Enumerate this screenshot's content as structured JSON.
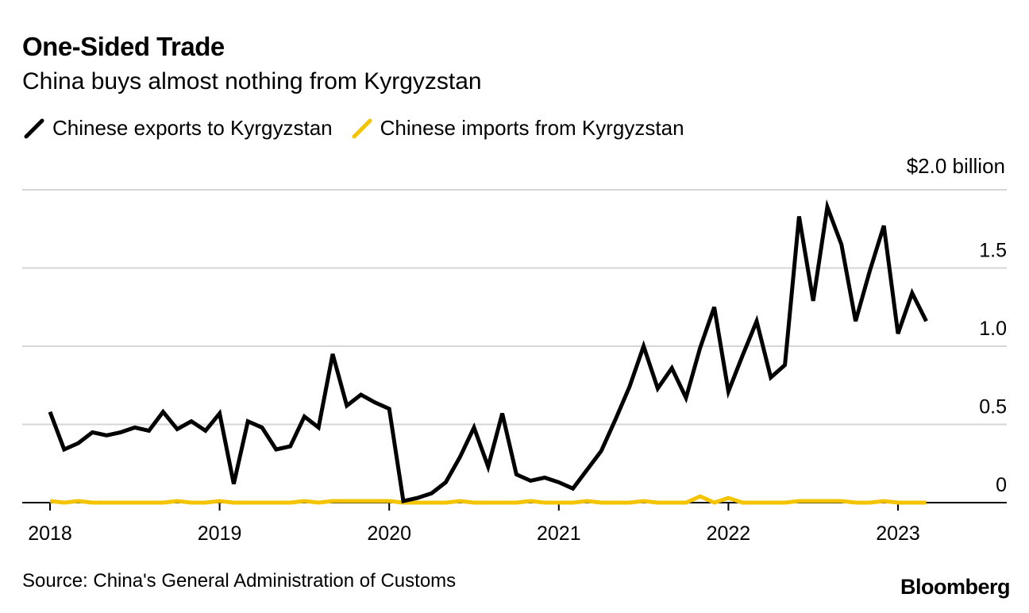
{
  "header": {
    "title": "One-Sided Trade",
    "subtitle": "China buys almost nothing from Kyrgyzstan"
  },
  "legend": [
    {
      "label": "Chinese exports to Kyrgyzstan",
      "color": "#000000"
    },
    {
      "label": "Chinese imports from Kyrgyzstan",
      "color": "#f5c400"
    }
  ],
  "footer": {
    "source": "Source: China's General Administration of Customs",
    "brand": "Bloomberg"
  },
  "chart_data": {
    "type": "line",
    "title": "One-Sided Trade",
    "subtitle": "China buys almost nothing from Kyrgyzstan",
    "unit_label": "$2.0 billion",
    "ylim": [
      0,
      2.0
    ],
    "yticks": [
      0,
      0.5,
      1.0,
      1.5,
      2.0
    ],
    "ytick_labels": [
      "0",
      "0.5",
      "1.0",
      "1.5",
      "$2.0 billion"
    ],
    "xticks": [
      2018,
      2019,
      2020,
      2021,
      2022,
      2023
    ],
    "xtick_labels": [
      "2018",
      "2019",
      "2020",
      "2021",
      "2022",
      "2023"
    ],
    "x_start": 2018.0,
    "x_step_months": 1,
    "grid": true,
    "legend_position": "top-left",
    "series": [
      {
        "name": "Chinese exports to Kyrgyzstan",
        "color": "#000000",
        "values": [
          0.58,
          0.34,
          0.38,
          0.45,
          0.43,
          0.45,
          0.48,
          0.46,
          0.58,
          0.47,
          0.52,
          0.46,
          0.57,
          0.12,
          0.52,
          0.48,
          0.34,
          0.36,
          0.55,
          0.48,
          0.95,
          0.62,
          0.69,
          0.64,
          0.6,
          0.01,
          0.03,
          0.06,
          0.13,
          0.29,
          0.48,
          0.23,
          0.57,
          0.18,
          0.14,
          0.16,
          0.13,
          0.09,
          0.21,
          0.33,
          0.53,
          0.74,
          1.0,
          0.73,
          0.86,
          0.67,
          0.99,
          1.25,
          0.71,
          0.94,
          1.16,
          0.8,
          0.88,
          1.83,
          1.29,
          1.89,
          1.65,
          1.16,
          1.48,
          1.77,
          1.08,
          1.34,
          1.16
        ]
      },
      {
        "name": "Chinese imports from Kyrgyzstan",
        "color": "#f5c400",
        "values": [
          0.01,
          0.0,
          0.01,
          0.0,
          0.0,
          0.0,
          0.0,
          0.0,
          0.0,
          0.01,
          0.0,
          0.0,
          0.01,
          0.0,
          0.0,
          0.0,
          0.0,
          0.0,
          0.01,
          0.0,
          0.01,
          0.01,
          0.01,
          0.01,
          0.01,
          0.0,
          0.0,
          0.0,
          0.0,
          0.01,
          0.0,
          0.0,
          0.0,
          0.0,
          0.01,
          0.0,
          0.0,
          0.0,
          0.01,
          0.0,
          0.0,
          0.0,
          0.01,
          0.0,
          0.0,
          0.0,
          0.04,
          0.0,
          0.03,
          0.0,
          0.0,
          0.0,
          0.0,
          0.01,
          0.01,
          0.01,
          0.01,
          0.0,
          0.0,
          0.01,
          0.0,
          0.0,
          0.0
        ]
      }
    ]
  }
}
